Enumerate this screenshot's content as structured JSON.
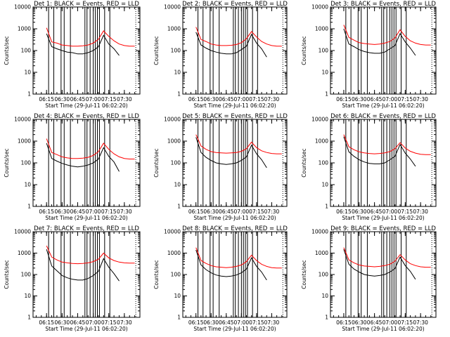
{
  "figure": {
    "background": "#ffffff",
    "colors": {
      "events": "#000000",
      "lld": "#ff0000"
    }
  },
  "chart_data": [
    {
      "type": "line",
      "title": "Det 1: BLACK = Events, RED = LLD",
      "xlabel": "Start Time (29-Jul-11 06:02:20)",
      "ylabel": "Counts/sec",
      "x": [
        "06:15",
        "06:20",
        "06:25",
        "06:30",
        "06:35",
        "06:40",
        "06:45",
        "06:50",
        "06:55",
        "07:00",
        "07:05",
        "07:10",
        "07:15",
        "07:20",
        "07:25",
        "07:30",
        "07:35",
        "07:40"
      ],
      "xlim": [
        "06:02",
        "07:45"
      ],
      "ylim": [
        1,
        10000
      ],
      "yscale": "log",
      "xticks": [
        "06:15",
        "06:30",
        "06:45",
        "07:00",
        "07:15",
        "07:30"
      ],
      "yticks": [
        "1",
        "10",
        "100",
        "1000",
        "10000"
      ],
      "vlines": [
        "06:17",
        "06:22",
        "06:29",
        "06:32",
        "06:38",
        "06:52",
        "06:54",
        "06:57",
        "07:00",
        "07:02",
        "07:04",
        "07:06",
        "07:11",
        "07:16"
      ],
      "series": [
        {
          "name": "BLACK = Events",
          "color": "#000000",
          "values": [
            600,
            150,
            120,
            100,
            85,
            80,
            70,
            70,
            80,
            100,
            150,
            500,
            200,
            120,
            60,
            null,
            null,
            null
          ]
        },
        {
          "name": "RED = LLD",
          "color": "#ff0000",
          "values": [
            1100,
            250,
            220,
            180,
            170,
            160,
            160,
            165,
            180,
            220,
            330,
            800,
            450,
            280,
            200,
            170,
            160,
            160
          ]
        }
      ]
    },
    {
      "type": "line",
      "title": "Det 2: BLACK = Events, RED = LLD",
      "xlabel": "Start Time (29-Jul-11 06:02:20)",
      "ylabel": "Counts/sec",
      "x": [
        "06:15",
        "06:20",
        "06:25",
        "06:30",
        "06:35",
        "06:40",
        "06:45",
        "06:50",
        "06:55",
        "07:00",
        "07:05",
        "07:10",
        "07:15",
        "07:20",
        "07:25",
        "07:30",
        "07:35",
        "07:40"
      ],
      "xlim": [
        "06:02",
        "07:45"
      ],
      "ylim": [
        1,
        10000
      ],
      "yscale": "log",
      "xticks": [
        "06:15",
        "06:30",
        "06:45",
        "07:00",
        "07:15",
        "07:30"
      ],
      "yticks": [
        "1",
        "10",
        "100",
        "1000",
        "10000"
      ],
      "vlines": [
        "06:17",
        "06:22",
        "06:29",
        "06:32",
        "06:38",
        "06:52",
        "06:54",
        "06:57",
        "07:00",
        "07:02",
        "07:04",
        "07:06",
        "07:11",
        "07:16"
      ],
      "series": [
        {
          "name": "BLACK = Events",
          "color": "#000000",
          "values": [
            700,
            180,
            130,
            100,
            85,
            75,
            70,
            70,
            80,
            110,
            160,
            550,
            220,
            120,
            50,
            null,
            null,
            null
          ]
        },
        {
          "name": "RED = LLD",
          "color": "#ff0000",
          "values": [
            1200,
            320,
            260,
            200,
            180,
            170,
            170,
            175,
            190,
            230,
            350,
            750,
            420,
            260,
            200,
            170,
            160,
            160
          ]
        }
      ]
    },
    {
      "type": "line",
      "title": "Det 3: BLACK = Events, RED = LLD",
      "xlabel": "Start Time (29-Jul-11 06:02:20)",
      "ylabel": "Counts/sec",
      "x": [
        "06:15",
        "06:20",
        "06:25",
        "06:30",
        "06:35",
        "06:40",
        "06:45",
        "06:50",
        "06:55",
        "07:00",
        "07:05",
        "07:10",
        "07:15",
        "07:20",
        "07:25",
        "07:30",
        "07:35",
        "07:40"
      ],
      "xlim": [
        "06:02",
        "07:45"
      ],
      "ylim": [
        1,
        10000
      ],
      "yscale": "log",
      "xticks": [
        "06:15",
        "06:30",
        "06:45",
        "07:00",
        "07:15",
        "07:30"
      ],
      "yticks": [
        "1",
        "10",
        "100",
        "1000",
        "10000"
      ],
      "vlines": [
        "06:17",
        "06:22",
        "06:29",
        "06:32",
        "06:38",
        "06:52",
        "06:54",
        "06:57",
        "07:00",
        "07:02",
        "07:04",
        "07:06",
        "07:11",
        "07:16"
      ],
      "series": [
        {
          "name": "BLACK = Events",
          "color": "#000000",
          "values": [
            1000,
            200,
            150,
            110,
            90,
            80,
            75,
            75,
            85,
            120,
            170,
            600,
            250,
            130,
            60,
            null,
            null,
            null
          ]
        },
        {
          "name": "RED = LLD",
          "color": "#ff0000",
          "values": [
            1500,
            400,
            300,
            230,
            210,
            200,
            190,
            200,
            220,
            260,
            380,
            900,
            450,
            280,
            220,
            190,
            180,
            180
          ]
        }
      ]
    },
    {
      "type": "line",
      "title": "Det 4: BLACK = Events, RED = LLD",
      "xlabel": "Start Time (29-Jul-11 06:02:20)",
      "ylabel": "Counts/sec",
      "x": [
        "06:15",
        "06:20",
        "06:25",
        "06:30",
        "06:35",
        "06:40",
        "06:45",
        "06:50",
        "06:55",
        "07:00",
        "07:05",
        "07:10",
        "07:15",
        "07:20",
        "07:25",
        "07:30",
        "07:35",
        "07:40"
      ],
      "xlim": [
        "06:02",
        "07:45"
      ],
      "ylim": [
        1,
        10000
      ],
      "yscale": "log",
      "xticks": [
        "06:15",
        "06:30",
        "06:45",
        "07:00",
        "07:15",
        "07:30"
      ],
      "yticks": [
        "1",
        "10",
        "100",
        "1000",
        "10000"
      ],
      "vlines": [
        "06:17",
        "06:22",
        "06:29",
        "06:32",
        "06:38",
        "06:52",
        "06:54",
        "06:57",
        "07:00",
        "07:02",
        "07:04",
        "07:06",
        "07:11",
        "07:16"
      ],
      "series": [
        {
          "name": "BLACK = Events",
          "color": "#000000",
          "values": [
            800,
            160,
            120,
            95,
            80,
            70,
            65,
            70,
            80,
            100,
            150,
            500,
            200,
            110,
            40,
            null,
            null,
            null
          ]
        },
        {
          "name": "RED = LLD",
          "color": "#ff0000",
          "values": [
            1300,
            300,
            240,
            190,
            170,
            160,
            160,
            165,
            180,
            220,
            330,
            800,
            420,
            260,
            190,
            160,
            150,
            150
          ]
        }
      ]
    },
    {
      "type": "line",
      "title": "Det 5: BLACK = Events, RED = LLD",
      "xlabel": "Start Time (29-Jul-11 06:02:20)",
      "ylabel": "Counts/sec",
      "x": [
        "06:15",
        "06:20",
        "06:25",
        "06:30",
        "06:35",
        "06:40",
        "06:45",
        "06:50",
        "06:55",
        "07:00",
        "07:05",
        "07:10",
        "07:15",
        "07:20",
        "07:25",
        "07:30",
        "07:35",
        "07:40"
      ],
      "xlim": [
        "06:02",
        "07:45"
      ],
      "ylim": [
        1,
        10000
      ],
      "yscale": "log",
      "xticks": [
        "06:15",
        "06:30",
        "06:45",
        "07:00",
        "07:15",
        "07:30"
      ],
      "yticks": [
        "1",
        "10",
        "100",
        "1000",
        "10000"
      ],
      "vlines": [
        "06:17",
        "06:22",
        "06:29",
        "06:32",
        "06:38",
        "06:52",
        "06:54",
        "06:57",
        "07:00",
        "07:02",
        "07:04",
        "07:06",
        "07:11",
        "07:16"
      ],
      "series": [
        {
          "name": "BLACK = Events",
          "color": "#000000",
          "values": [
            1500,
            300,
            180,
            130,
            100,
            90,
            85,
            90,
            100,
            130,
            190,
            650,
            260,
            140,
            60,
            null,
            null,
            null
          ]
        },
        {
          "name": "RED = LLD",
          "color": "#ff0000",
          "values": [
            2000,
            600,
            420,
            330,
            300,
            290,
            280,
            290,
            300,
            340,
            450,
            900,
            500,
            360,
            300,
            270,
            260,
            260
          ]
        }
      ]
    },
    {
      "type": "line",
      "title": "Det 6: BLACK = Events, RED = LLD",
      "xlabel": "Start Time (29-Jul-11 06:02:20)",
      "ylabel": "Counts/sec",
      "x": [
        "06:15",
        "06:20",
        "06:25",
        "06:30",
        "06:35",
        "06:40",
        "06:45",
        "06:50",
        "06:55",
        "07:00",
        "07:05",
        "07:10",
        "07:15",
        "07:20",
        "07:25",
        "07:30",
        "07:35",
        "07:40"
      ],
      "xlim": [
        "06:02",
        "07:45"
      ],
      "ylim": [
        1,
        10000
      ],
      "yscale": "log",
      "xticks": [
        "06:15",
        "06:30",
        "06:45",
        "07:00",
        "07:15",
        "07:30"
      ],
      "yticks": [
        "1",
        "10",
        "100",
        "1000",
        "10000"
      ],
      "vlines": [
        "06:17",
        "06:22",
        "06:29",
        "06:32",
        "06:38",
        "06:52",
        "06:54",
        "06:57",
        "07:00",
        "07:02",
        "07:04",
        "07:06",
        "07:11",
        "07:16"
      ],
      "series": [
        {
          "name": "BLACK = Events",
          "color": "#000000",
          "values": [
            1600,
            320,
            200,
            140,
            110,
            95,
            90,
            90,
            100,
            140,
            200,
            700,
            280,
            150,
            70,
            null,
            null,
            null
          ]
        },
        {
          "name": "RED = LLD",
          "color": "#ff0000",
          "values": [
            2000,
            550,
            400,
            320,
            290,
            270,
            260,
            270,
            290,
            330,
            450,
            850,
            480,
            340,
            280,
            250,
            240,
            240
          ]
        }
      ]
    },
    {
      "type": "line",
      "title": "Det 7: BLACK = Events, RED = LLD",
      "xlabel": "Start Time (29-Jul-11 06:02:20)",
      "ylabel": "Counts/sec",
      "x": [
        "06:15",
        "06:20",
        "06:25",
        "06:30",
        "06:35",
        "06:40",
        "06:45",
        "06:50",
        "06:55",
        "07:00",
        "07:05",
        "07:10",
        "07:15",
        "07:20",
        "07:25",
        "07:30",
        "07:35",
        "07:40"
      ],
      "xlim": [
        "06:02",
        "07:45"
      ],
      "ylim": [
        1,
        10000
      ],
      "yscale": "log",
      "xticks": [
        "06:15",
        "06:30",
        "06:45",
        "07:00",
        "07:15",
        "07:30"
      ],
      "yticks": [
        "1",
        "10",
        "100",
        "1000",
        "10000"
      ],
      "vlines": [
        "06:17",
        "06:22",
        "06:29",
        "06:32",
        "06:38",
        "06:52",
        "06:54",
        "06:57",
        "07:00",
        "07:02",
        "07:04",
        "07:06",
        "07:11",
        "07:16"
      ],
      "series": [
        {
          "name": "BLACK = Events",
          "color": "#000000",
          "values": [
            1500,
            250,
            150,
            90,
            70,
            60,
            55,
            55,
            65,
            90,
            140,
            550,
            220,
            110,
            50,
            null,
            null,
            null
          ]
        },
        {
          "name": "RED = LLD",
          "color": "#ff0000",
          "values": [
            2200,
            650,
            480,
            380,
            350,
            330,
            320,
            330,
            350,
            400,
            520,
            1000,
            600,
            450,
            380,
            350,
            340,
            340
          ]
        }
      ]
    },
    {
      "type": "line",
      "title": "Det 8: BLACK = Events, RED = LLD",
      "xlabel": "Start Time (29-Jul-11 06:02:20)",
      "ylabel": "Counts/sec",
      "x": [
        "06:15",
        "06:20",
        "06:25",
        "06:30",
        "06:35",
        "06:40",
        "06:45",
        "06:50",
        "06:55",
        "07:00",
        "07:05",
        "07:10",
        "07:15",
        "07:20",
        "07:25",
        "07:30",
        "07:35",
        "07:40"
      ],
      "xlim": [
        "06:02",
        "07:45"
      ],
      "ylim": [
        1,
        10000
      ],
      "yscale": "log",
      "xticks": [
        "06:15",
        "06:30",
        "06:45",
        "07:00",
        "07:15",
        "07:30"
      ],
      "yticks": [
        "1",
        "10",
        "100",
        "1000",
        "10000"
      ],
      "vlines": [
        "06:17",
        "06:22",
        "06:29",
        "06:32",
        "06:38",
        "06:52",
        "06:54",
        "06:57",
        "07:00",
        "07:02",
        "07:04",
        "07:06",
        "07:11",
        "07:16"
      ],
      "series": [
        {
          "name": "BLACK = Events",
          "color": "#000000",
          "values": [
            1400,
            280,
            170,
            120,
            95,
            85,
            80,
            85,
            95,
            120,
            180,
            600,
            240,
            130,
            55,
            null,
            null,
            null
          ]
        },
        {
          "name": "RED = LLD",
          "color": "#ff0000",
          "values": [
            1800,
            450,
            330,
            260,
            230,
            220,
            210,
            220,
            240,
            280,
            400,
            800,
            450,
            300,
            240,
            210,
            200,
            200
          ]
        }
      ]
    },
    {
      "type": "line",
      "title": "Det 9: BLACK = Events, RED = LLD",
      "xlabel": "Start Time (29-Jul-11 06:02:20)",
      "ylabel": "Counts/sec",
      "x": [
        "06:15",
        "06:20",
        "06:25",
        "06:30",
        "06:35",
        "06:40",
        "06:45",
        "06:50",
        "06:55",
        "07:00",
        "07:05",
        "07:10",
        "07:15",
        "07:20",
        "07:25",
        "07:30",
        "07:35",
        "07:40"
      ],
      "xlim": [
        "06:02",
        "07:45"
      ],
      "ylim": [
        1,
        10000
      ],
      "yscale": "log",
      "xticks": [
        "06:15",
        "06:30",
        "06:45",
        "07:00",
        "07:15",
        "07:30"
      ],
      "yticks": [
        "1",
        "10",
        "100",
        "1000",
        "10000"
      ],
      "vlines": [
        "06:17",
        "06:22",
        "06:29",
        "06:32",
        "06:38",
        "06:52",
        "06:54",
        "06:57",
        "07:00",
        "07:02",
        "07:04",
        "07:06",
        "07:11",
        "07:16"
      ],
      "series": [
        {
          "name": "BLACK = Events",
          "color": "#000000",
          "values": [
            1500,
            300,
            180,
            130,
            100,
            90,
            85,
            90,
            100,
            130,
            190,
            650,
            260,
            140,
            60,
            null,
            null,
            null
          ]
        },
        {
          "name": "RED = LLD",
          "color": "#ff0000",
          "values": [
            1800,
            480,
            350,
            280,
            250,
            240,
            230,
            240,
            260,
            300,
            420,
            850,
            480,
            320,
            260,
            230,
            220,
            220
          ]
        }
      ]
    }
  ]
}
